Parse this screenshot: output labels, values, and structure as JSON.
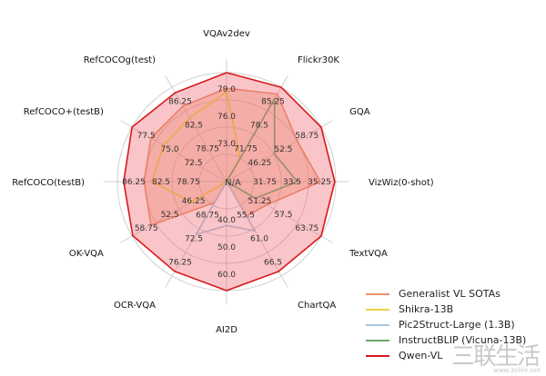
{
  "chart_data": {
    "type": "radar",
    "axes": [
      {
        "label": "VQAv2dev",
        "ticks": [
          "73.0",
          "76.0",
          "79.0"
        ],
        "range": [
          70,
          79
        ]
      },
      {
        "label": "Flickr30K",
        "ticks": [
          "71.75",
          "78.5",
          "85.25"
        ],
        "range": [
          65,
          85.25
        ]
      },
      {
        "label": "GQA",
        "ticks": [
          "46.25",
          "52.5",
          "58.75"
        ],
        "range": [
          40,
          58.75
        ]
      },
      {
        "label": "VizWiz(0-shot)",
        "ticks": [
          "31.75",
          "33.5",
          "35.25"
        ],
        "range": [
          30,
          35.25
        ]
      },
      {
        "label": "TextVQA",
        "ticks": [
          "51.25",
          "57.5",
          "63.75"
        ],
        "range": [
          45,
          63.75
        ]
      },
      {
        "label": "ChartQA",
        "ticks": [
          "55.5",
          "61.0",
          "66.5"
        ],
        "range": [
          50,
          66.5
        ]
      },
      {
        "label": "AI2D",
        "ticks": [
          "40.0",
          "50.0",
          "60.0"
        ],
        "range": [
          30,
          60
        ]
      },
      {
        "label": "OCR-VQA",
        "ticks": [
          "68.75",
          "72.5",
          "76.25"
        ],
        "range": [
          65,
          76.25
        ]
      },
      {
        "label": "OK-VQA",
        "ticks": [
          "46.25",
          "52.5",
          "58.75"
        ],
        "range": [
          40,
          58.75
        ]
      },
      {
        "label": "RefCOCO(testB)",
        "ticks": [
          "78.75",
          "82.5",
          "86.25"
        ],
        "range": [
          75,
          86.25
        ]
      },
      {
        "label": "RefCOCO+(testB)",
        "ticks": [
          "72.5",
          "75.0",
          "77.5"
        ],
        "range": [
          70,
          77.5
        ]
      },
      {
        "label": "RefCOCOg(test)",
        "ticks": [
          "78.75",
          "82.5",
          "86.25"
        ],
        "range": [
          75,
          86.25
        ]
      }
    ],
    "na_label": "N/A",
    "series": [
      {
        "name": "Generalist VL SOTAs",
        "color": "#e8946a",
        "values": [
          77.7,
          83.8,
          54.0,
          34.5,
          53.0,
          56.0,
          30.0,
          67.5,
          55.0,
          83.5,
          76.0,
          84.0
        ]
      },
      {
        "name": "Shikra-13B",
        "color": "#f0d040",
        "values": [
          77.4,
          70.0,
          40.0,
          30.0,
          45.0,
          50.0,
          30.0,
          65.0,
          47.0,
          82.7,
          75.0,
          82.6
        ]
      },
      {
        "name": "Pic2Struct-Large (1.3B)",
        "color": "#a6c8e0",
        "values": [
          70.0,
          65.0,
          40.0,
          30.0,
          45.0,
          58.6,
          42.1,
          71.3,
          40.0,
          75.0,
          70.0,
          75.0
        ]
      },
      {
        "name": "InstructBLIP (Vicuna-13B)",
        "color": "#6aaa6a",
        "values": [
          70.0,
          82.8,
          49.5,
          33.4,
          50.7,
          50.0,
          30.0,
          65.0,
          40.0,
          75.0,
          70.0,
          75.0
        ]
      },
      {
        "name": "Qwen-VL",
        "color": "#d7191c",
        "values": [
          79.5,
          85.8,
          59.3,
          35.2,
          63.8,
          65.7,
          62.3,
          75.7,
          58.6,
          85.6,
          77.6,
          85.6
        ]
      }
    ],
    "legend_position": "bottom-right",
    "grid": true
  },
  "watermark": {
    "main": "三联生活",
    "url": "www.3elife.net"
  }
}
